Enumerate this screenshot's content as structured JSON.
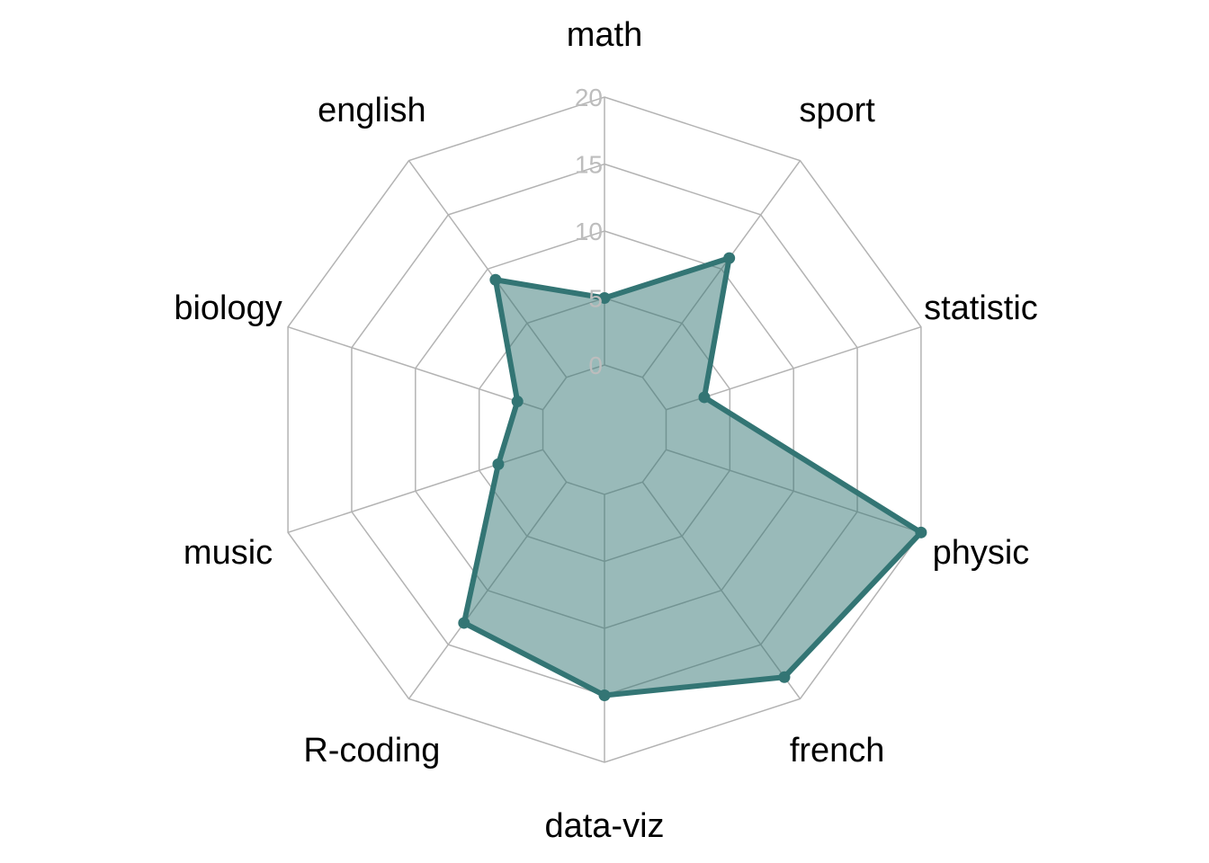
{
  "chart_data": {
    "type": "radar",
    "axes": [
      "math",
      "sport",
      "statistic",
      "physic",
      "french",
      "data-viz",
      "R-coding",
      "music",
      "biology",
      "english"
    ],
    "ticks": [
      "0",
      "5",
      "10",
      "15",
      "20"
    ],
    "rlim": [
      0,
      20
    ],
    "series": [
      {
        "values": [
          5,
          11,
          3,
          20,
          18,
          15,
          13,
          3.5,
          2,
          9
        ]
      }
    ],
    "grid": true,
    "colors": {
      "line": "#337574",
      "fill": "#337574",
      "grid": "#b3b3b3",
      "tick": "#bdbdbd",
      "text": "#000000"
    }
  }
}
